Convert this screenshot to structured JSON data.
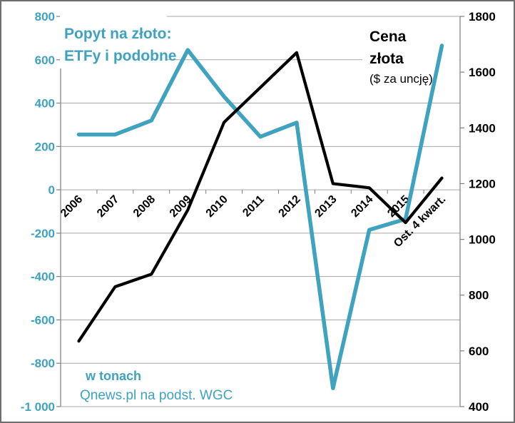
{
  "frame": {
    "background": "#ffffff",
    "border_color": "#6e6e6e"
  },
  "labels": {
    "popyt_line1": "Popyt na złoto:",
    "popyt_line2": "ETFy i podobne",
    "cena_line1": "Cena",
    "cena_line2": "złota",
    "cena_sub": "($ za uncję)",
    "unit_note": "w tonach",
    "source_note": "Qnews.pl na podst. WGC"
  },
  "colors": {
    "etf_series": "#3fa2bf",
    "gold_series": "#000000",
    "left_axis_text": "#3fa2bf",
    "right_axis_text": "#000000",
    "gridline": "#a8a8a8",
    "axis_line": "#7e7e7e"
  },
  "chart_data": {
    "type": "line",
    "title": "Popyt na złoto: ETFy i podobne / Cena złota ($ za uncję)",
    "categories": [
      "2006",
      "2007",
      "2008",
      "2009",
      "2010",
      "2011",
      "2012",
      "2013",
      "2014",
      "2015",
      "Ost. 4 kwart."
    ],
    "series": [
      {
        "name": "Popyt na złoto: ETFy i podobne",
        "axis": "left",
        "unit": "tony",
        "color": "#3fa2bf",
        "values": [
          255,
          255,
          320,
          645,
          430,
          245,
          310,
          -915,
          -185,
          -135,
          665
        ]
      },
      {
        "name": "Cena złota ($ za uncję)",
        "axis": "right",
        "unit": "USD/oz",
        "color": "#000000",
        "values": [
          635,
          830,
          875,
          1105,
          1420,
          1545,
          1670,
          1200,
          1185,
          1060,
          1220
        ]
      }
    ],
    "left_axis": {
      "min": -1000,
      "max": 800,
      "step": 200,
      "tick_labels": [
        "800",
        "600",
        "400",
        "200",
        "0",
        "-200",
        "-400",
        "-600",
        "-800",
        "-1 000"
      ]
    },
    "right_axis": {
      "min": 400,
      "max": 1800,
      "step": 200,
      "tick_labels": [
        "1800",
        "1600",
        "1400",
        "1200",
        "1000",
        "800",
        "600",
        "400"
      ]
    },
    "grid": true,
    "legend_position": "none",
    "x_tick_rotation": -45
  }
}
